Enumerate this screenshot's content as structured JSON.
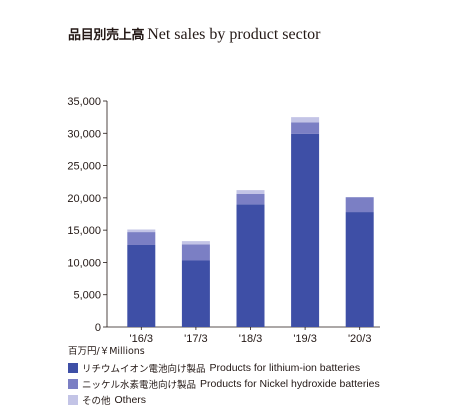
{
  "title": {
    "jp": "品目別売上高",
    "en": "Net sales by product sector"
  },
  "unit_label": "百万円/￥Millions",
  "legend": [
    {
      "jp": "リチウムイオン電池向け製品",
      "en": "Products for lithium-ion batteries",
      "color": "#3e4fa6"
    },
    {
      "jp": "ニッケル水素電池向け製品",
      "en": "Products for Nickel hydroxide batteries",
      "color": "#7b7fc4"
    },
    {
      "jp": "その他",
      "en": "Others",
      "color": "#c3c4e6"
    }
  ],
  "chart_data": {
    "type": "bar",
    "stacked": true,
    "title": "品目別売上高 Net sales by product sector",
    "categories": [
      "'16/3",
      "'17/3",
      "'18/3",
      "'19/3",
      "'20/3"
    ],
    "series": [
      {
        "name": "リチウムイオン電池向け製品 Products for lithium-ion batteries",
        "color": "#3e4fa6",
        "values": [
          12700,
          10300,
          19000,
          29900,
          17800
        ]
      },
      {
        "name": "ニッケル水素電池向け製品 Products for Nickel hydroxide batteries",
        "color": "#7b7fc4",
        "values": [
          2000,
          2500,
          1600,
          1800,
          2300
        ]
      },
      {
        "name": "その他 Others",
        "color": "#c3c4e6",
        "values": [
          400,
          500,
          600,
          800,
          0
        ]
      }
    ],
    "y_ticks": [
      "0",
      "5,000",
      "10,000",
      "15,000",
      "20,000",
      "25,000",
      "30,000",
      "35,000"
    ],
    "ylim": [
      0,
      35000
    ],
    "y_tick_step": 5000,
    "ylabel": "百万円/￥Millions",
    "xlabel": "",
    "grid": false,
    "legend_position": "bottom"
  }
}
